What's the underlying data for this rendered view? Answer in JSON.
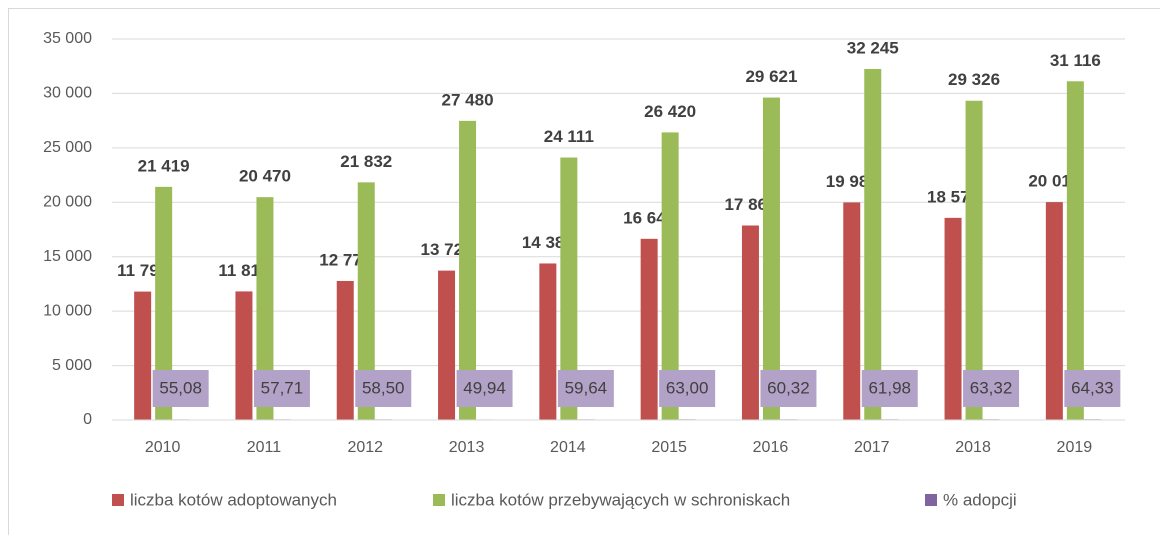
{
  "chart_data": {
    "type": "bar",
    "categories": [
      "2010",
      "2011",
      "2012",
      "2013",
      "2014",
      "2015",
      "2016",
      "2017",
      "2018",
      "2019"
    ],
    "series": [
      {
        "name": "liczba kotów adoptowanych",
        "color": "#c0504d",
        "values": [
          11798,
          11813,
          12772,
          13723,
          14380,
          16644,
          17868,
          19985,
          18570,
          20017
        ],
        "value_labels": [
          "11 798",
          "11 813",
          "12 772",
          "13 723",
          "14 380",
          "16 644",
          "17 868",
          "19 985",
          "18 570",
          "20 017"
        ]
      },
      {
        "name": "liczba kotów przebywających w schroniskach",
        "color": "#9bbb59",
        "values": [
          21419,
          20470,
          21832,
          27480,
          24111,
          26420,
          29621,
          32245,
          29326,
          31116
        ],
        "value_labels": [
          "21 419",
          "20 470",
          "21 832",
          "27 480",
          "24 111",
          "26 420",
          "29 621",
          "32 245",
          "29 326",
          "31 116"
        ]
      },
      {
        "name": "% adopcji",
        "color": "#8064a2",
        "values": [
          55.08,
          57.71,
          58.5,
          49.94,
          59.64,
          63.0,
          60.32,
          61.98,
          63.32,
          64.33
        ],
        "value_labels": [
          "55,08",
          "57,71",
          "58,50",
          "49,94",
          "59,64",
          "63,00",
          "60,32",
          "61,98",
          "63,32",
          "64,33"
        ]
      }
    ],
    "ylim": [
      0,
      35000
    ],
    "yticks": [
      0,
      {
        "value": 5000,
        "label": "5 000"
      },
      {
        "value": 10000,
        "label": "10 000"
      },
      {
        "value": 15000,
        "label": "15 000"
      },
      {
        "value": 20000,
        "label": "20 000"
      },
      {
        "value": 25000,
        "label": "25 000"
      },
      {
        "value": 30000,
        "label": "30 000"
      },
      {
        "value": 35000,
        "label": "35 000"
      }
    ],
    "grid": true,
    "legend": "bottom"
  }
}
